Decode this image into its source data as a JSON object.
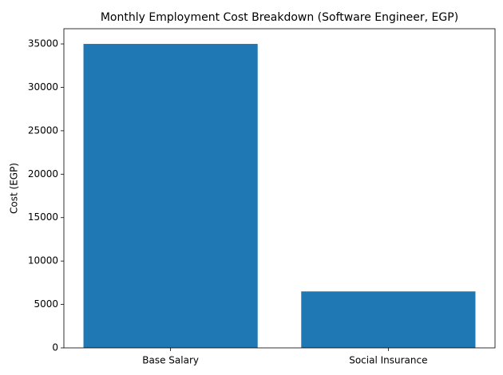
{
  "chart_data": {
    "type": "bar",
    "title": "Monthly Employment Cost Breakdown (Software Engineer, EGP)",
    "y_label": "Cost (EGP)",
    "categories": [
      "Base Salary",
      "Social Insurance"
    ],
    "values": [
      35000,
      6500
    ],
    "color": "#1f77b4",
    "ylim": [
      0,
      36750
    ],
    "yticks": [
      0,
      5000,
      10000,
      15000,
      20000,
      25000,
      30000,
      35000
    ],
    "grid": false
  }
}
